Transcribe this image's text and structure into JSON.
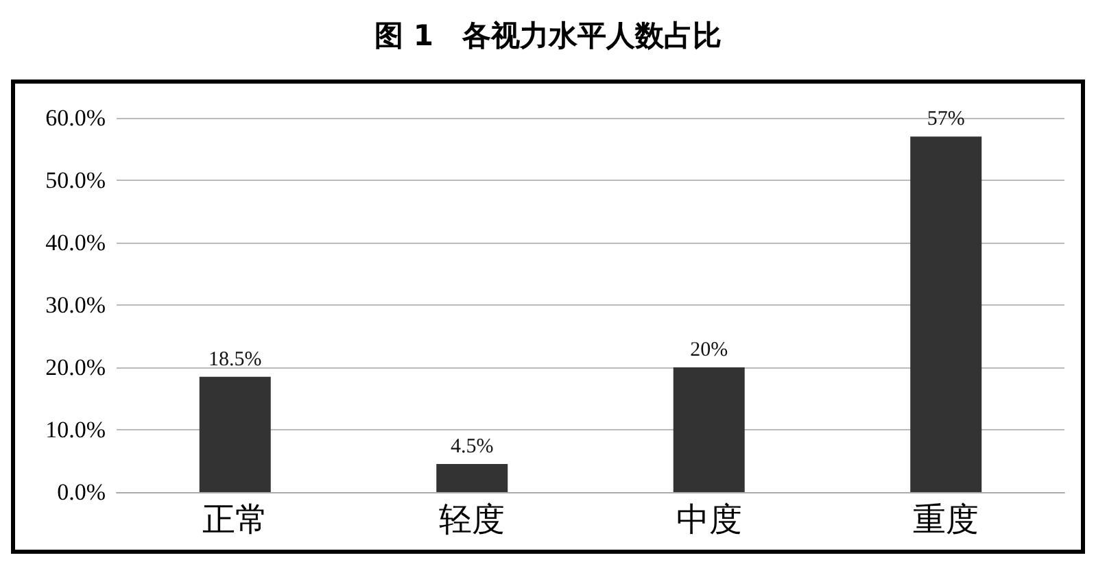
{
  "chart_data": {
    "type": "bar",
    "title": "图 1　各视力水平人数占比",
    "categories": [
      "正常",
      "轻度",
      "中度",
      "重度"
    ],
    "values": [
      18.5,
      4.5,
      20,
      57
    ],
    "value_labels": [
      "18.5%",
      "4.5%",
      "20%",
      "57%"
    ],
    "color": "#333333",
    "ylim": [
      0,
      60
    ],
    "yticks": [
      {
        "value": 0,
        "label": "0.0%"
      },
      {
        "value": 10,
        "label": "10.0%"
      },
      {
        "value": 20,
        "label": "20.0%"
      },
      {
        "value": 30,
        "label": "30.0%"
      },
      {
        "value": 40,
        "label": "40.0%"
      },
      {
        "value": 50,
        "label": "50.0%"
      },
      {
        "value": 60,
        "label": "60.0%"
      }
    ],
    "grid": "y"
  }
}
